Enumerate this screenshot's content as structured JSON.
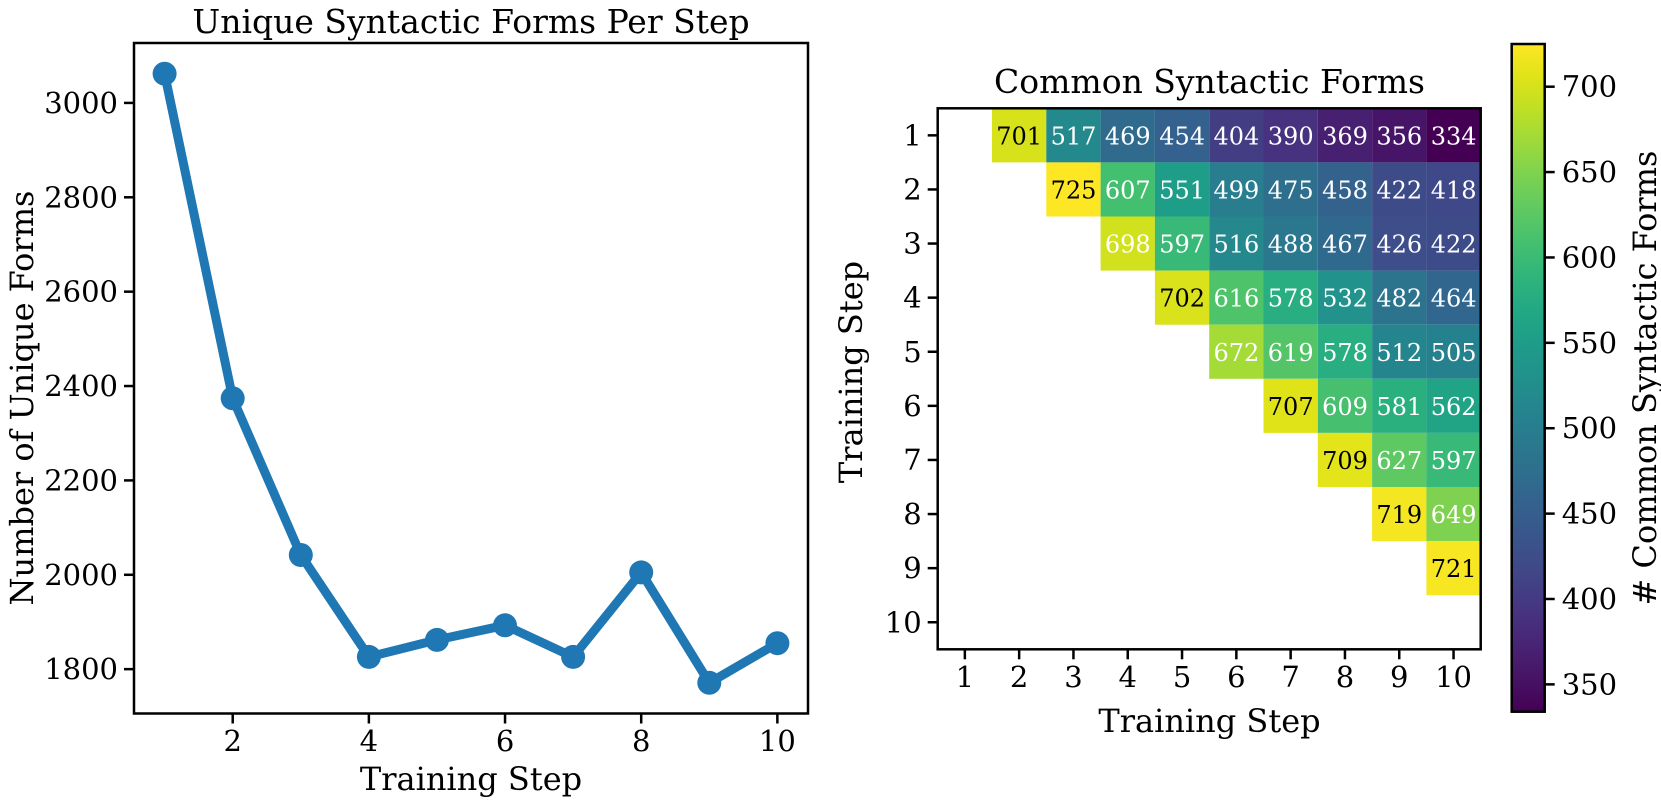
{
  "figure": {
    "background": "#ffffff"
  },
  "chart_data": [
    {
      "type": "line",
      "title": "Unique Syntactic Forms Per Step",
      "xlabel": "Training Step",
      "ylabel": "Number of Unique Forms",
      "x": [
        1,
        2,
        3,
        4,
        5,
        6,
        7,
        8,
        9,
        10
      ],
      "y": [
        3062,
        2374,
        2042,
        1826,
        1862,
        1893,
        1826,
        2005,
        1771,
        1855
      ],
      "xticks": [
        2,
        4,
        6,
        8,
        10
      ],
      "yticks": [
        1800,
        2000,
        2200,
        2400,
        2600,
        2800,
        3000
      ],
      "xlim": [
        0.55,
        10.45
      ],
      "ylim": [
        1706,
        3127
      ],
      "line_color": "#1f77b4",
      "marker": "circle",
      "grid": false,
      "legend": "none"
    },
    {
      "type": "heatmap",
      "title": "Common Syntactic Forms",
      "xlabel": "Training Step",
      "ylabel": "Training Step",
      "row_labels": [
        "1",
        "2",
        "3",
        "4",
        "5",
        "6",
        "7",
        "8",
        "9",
        "10"
      ],
      "col_labels": [
        "1",
        "2",
        "3",
        "4",
        "5",
        "6",
        "7",
        "8",
        "9",
        "10"
      ],
      "matrix": [
        [
          null,
          701,
          517,
          469,
          454,
          404,
          390,
          369,
          356,
          334
        ],
        [
          null,
          null,
          725,
          607,
          551,
          499,
          475,
          458,
          422,
          418
        ],
        [
          null,
          null,
          null,
          698,
          597,
          516,
          488,
          467,
          426,
          422
        ],
        [
          null,
          null,
          null,
          null,
          702,
          616,
          578,
          532,
          482,
          464
        ],
        [
          null,
          null,
          null,
          null,
          null,
          672,
          619,
          578,
          512,
          505
        ],
        [
          null,
          null,
          null,
          null,
          null,
          null,
          707,
          609,
          581,
          562
        ],
        [
          null,
          null,
          null,
          null,
          null,
          null,
          null,
          709,
          627,
          597
        ],
        [
          null,
          null,
          null,
          null,
          null,
          null,
          null,
          null,
          719,
          649
        ],
        [
          null,
          null,
          null,
          null,
          null,
          null,
          null,
          null,
          null,
          721
        ],
        [
          null,
          null,
          null,
          null,
          null,
          null,
          null,
          null,
          null,
          null
        ]
      ],
      "vmin": 334,
      "vmax": 725,
      "colormap": "viridis",
      "cell_text_black_threshold": 700,
      "cell_text_colors": {
        "dark_cells": "#ffffff",
        "bright_cells": "#000000"
      },
      "colorbar": {
        "label": "# Common Syntactic Forms",
        "ticks": [
          350,
          400,
          450,
          500,
          550,
          600,
          650,
          700
        ]
      },
      "grid": false
    }
  ]
}
